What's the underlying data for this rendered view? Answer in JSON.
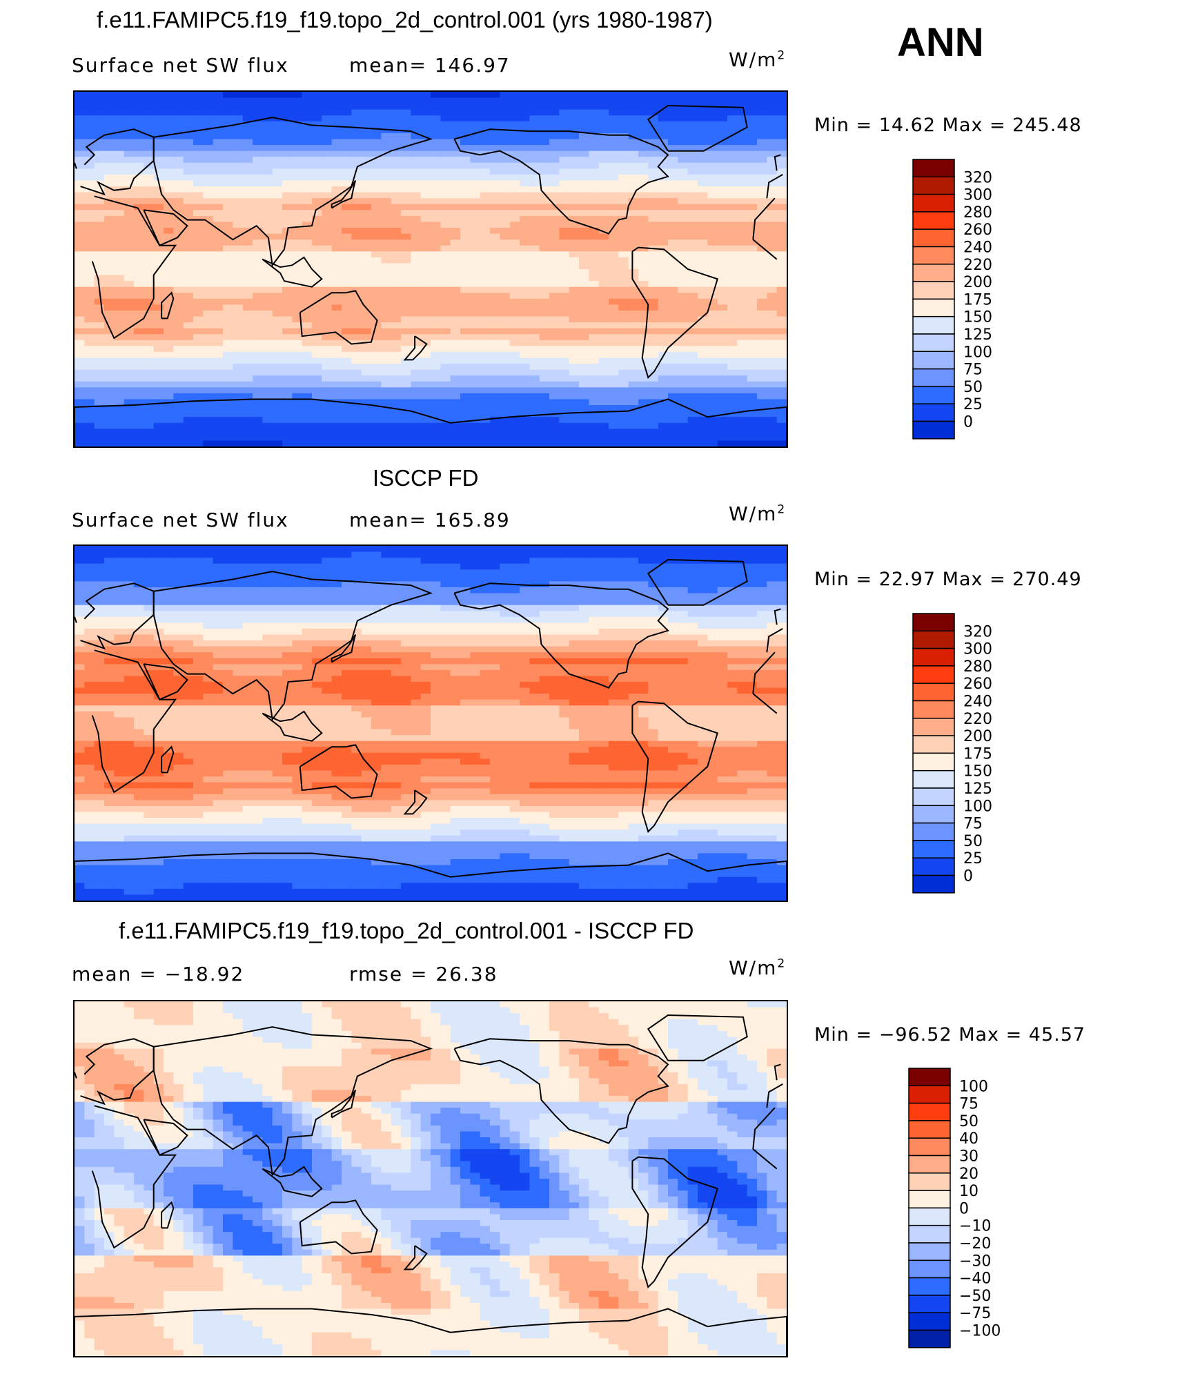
{
  "colors": {
    "abs_scale": [
      "#000099",
      "#0021a8",
      "#002ed6",
      "#1447f2",
      "#2e6bff",
      "#6b94ff",
      "#9ab7ff",
      "#c2d4ff",
      "#dbe8fb",
      "#fff0e0",
      "#ffd2b8",
      "#ffae8a",
      "#ff8a5e",
      "#ff6433",
      "#ff3d0f",
      "#d92000",
      "#b01b00",
      "#7a0000"
    ],
    "diff_scale": [
      "#000099",
      "#0021a8",
      "#002ed6",
      "#1447f2",
      "#2e6bff",
      "#6b94ff",
      "#9ab7ff",
      "#c2d4ff",
      "#dbe8fb",
      "#fff0e0",
      "#ffd2b8",
      "#ffae8a",
      "#ff8a5e",
      "#ff6433",
      "#ff3d0f",
      "#d92000",
      "#7a0000"
    ],
    "coast": "#000000"
  },
  "header": {
    "season": "ANN"
  },
  "panels": [
    {
      "title": "f.e11.FAMIPC5.f19_f19.topo_2d_control.001 (yrs 1980-1987)",
      "left_label": "Surface  net  SW  flux",
      "mid_label": "mean=  146.97",
      "units_base": "W/m",
      "units_exp": "2",
      "minmax": "Min  =    14.62  Max  =  245.48",
      "colorbar_ticks": [
        "320",
        "300",
        "280",
        "260",
        "240",
        "220",
        "200",
        "175",
        "150",
        "125",
        "100",
        "75",
        "50",
        "25",
        "0"
      ],
      "palette": "abs",
      "field": {
        "tropic_peak": 215,
        "subtropic_peak": 235,
        "pole": 25,
        "midlat": 110
      }
    },
    {
      "title": "ISCCP FD",
      "left_label": "Surface  net  SW  flux",
      "mid_label": "mean=  165.89",
      "units_base": "W/m",
      "units_exp": "2",
      "minmax": "Min  =    22.97  Max  =  270.49",
      "colorbar_ticks": [
        "320",
        "300",
        "280",
        "260",
        "240",
        "220",
        "200",
        "175",
        "150",
        "125",
        "100",
        "75",
        "50",
        "25",
        "0"
      ],
      "palette": "abs",
      "field": {
        "tropic_peak": 240,
        "subtropic_peak": 265,
        "pole": 35,
        "midlat": 125
      }
    },
    {
      "title": "f.e11.FAMIPC5.f19_f19.topo_2d_control.001 - ISCCP FD",
      "left_label": "mean  =  −18.92",
      "mid_label": "rmse  =    26.38",
      "units_base": "W/m",
      "units_exp": "2",
      "minmax": "Min  =  −96.52  Max  =    45.57",
      "colorbar_ticks": [
        "100",
        "75",
        "50",
        "40",
        "30",
        "20",
        "10",
        "0",
        "−10",
        "−20",
        "−30",
        "−40",
        "−50",
        "−75",
        "−100"
      ],
      "palette": "diff",
      "field": {
        "tropic_peak": -30,
        "subtropic_peak": 10,
        "pole": 5,
        "midlat": -15
      }
    }
  ]
}
